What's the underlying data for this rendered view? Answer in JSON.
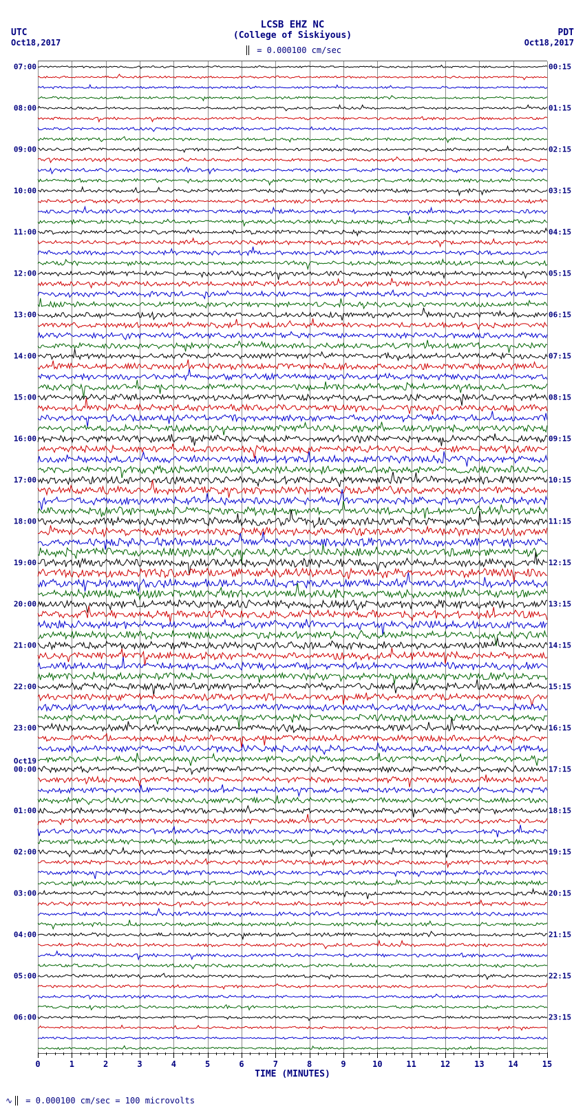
{
  "header": {
    "title_main": "LCSB EHZ NC",
    "title_sub": "(College of Siskiyous)",
    "scale_text": "= 0.000100 cm/sec"
  },
  "timezones": {
    "left_label": "UTC",
    "left_date": "Oct18,2017",
    "right_label": "PDT",
    "right_date": "Oct18,2017"
  },
  "plot": {
    "type": "seismogram-helicorder",
    "background_color": "#ffffff",
    "grid_color": "#888888",
    "label_color": "#000080",
    "trace_colors": [
      "#000000",
      "#d00000",
      "#0000d0",
      "#006400"
    ],
    "n_traces": 96,
    "trace_amplitude_base": 3.0,
    "trace_amplitude_ramp": 0.07,
    "trace_noise_seed": 42,
    "x_minutes": 15,
    "x_ticks_major": [
      0,
      1,
      2,
      3,
      4,
      5,
      6,
      7,
      8,
      9,
      10,
      11,
      12,
      13,
      14,
      15
    ],
    "x_minor_per_major": 4,
    "x_title": "TIME (MINUTES)",
    "left_hour_labels": [
      "07:00",
      "08:00",
      "09:00",
      "10:00",
      "11:00",
      "12:00",
      "13:00",
      "14:00",
      "15:00",
      "16:00",
      "17:00",
      "18:00",
      "19:00",
      "20:00",
      "21:00",
      "22:00",
      "23:00",
      "00:00",
      "01:00",
      "02:00",
      "03:00",
      "04:00",
      "05:00",
      "06:00"
    ],
    "right_hour_labels": [
      "00:15",
      "01:15",
      "02:15",
      "03:15",
      "04:15",
      "05:15",
      "06:15",
      "07:15",
      "08:15",
      "09:15",
      "10:15",
      "11:15",
      "12:15",
      "13:15",
      "14:15",
      "15:15",
      "16:15",
      "17:15",
      "18:15",
      "19:15",
      "20:15",
      "21:15",
      "22:15",
      "23:15"
    ],
    "date_roll_label": "Oct19",
    "date_roll_before_index": 17
  },
  "footer": {
    "scale_line": "= 0.000100 cm/sec =   100 microvolts"
  }
}
